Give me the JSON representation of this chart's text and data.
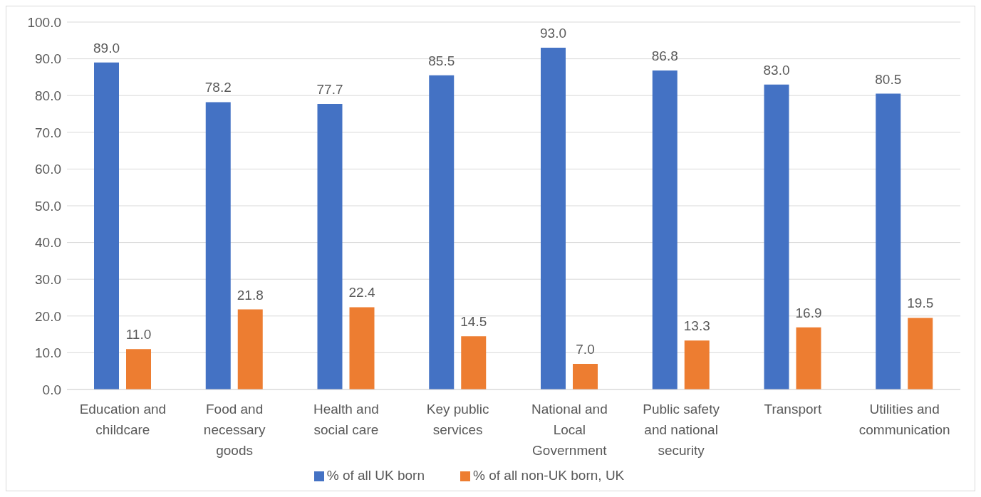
{
  "chart_data": {
    "type": "bar",
    "categories": [
      "Education and childcare",
      "Food and necessary goods",
      "Health and social care",
      "Key public services",
      "National and Local Government",
      "Public safety and national security",
      "Transport",
      "Utilities and communication"
    ],
    "series": [
      {
        "name": "% of all UK born",
        "color": "#4472c4",
        "values": [
          89.0,
          78.2,
          77.7,
          85.5,
          93.0,
          86.8,
          83.0,
          80.5
        ],
        "value_labels": [
          "89.0",
          "78.2",
          "77.7",
          "85.5",
          "93.0",
          "86.8",
          "83.0",
          "80.5"
        ]
      },
      {
        "name": "% of all non-UK born, UK",
        "color": "#ed7d31",
        "values": [
          11.0,
          21.8,
          22.4,
          14.5,
          7.0,
          13.3,
          16.9,
          19.5
        ],
        "value_labels": [
          "11.0",
          "21.8",
          "22.4",
          "14.5",
          "7.0",
          "13.3",
          "16.9",
          "19.5"
        ]
      }
    ],
    "ylim": [
      0,
      100
    ],
    "yticks": [
      {
        "value": 0,
        "label": "0.0"
      },
      {
        "value": 10,
        "label": "10.0"
      },
      {
        "value": 20,
        "label": "20.0"
      },
      {
        "value": 30,
        "label": "30.0"
      },
      {
        "value": 40,
        "label": "40.0"
      },
      {
        "value": 50,
        "label": "50.0"
      },
      {
        "value": 60,
        "label": "60.0"
      },
      {
        "value": 70,
        "label": "70.0"
      },
      {
        "value": 80,
        "label": "80.0"
      },
      {
        "value": 90,
        "label": "90.0"
      },
      {
        "value": 100,
        "label": "100.0"
      }
    ],
    "grid": "y",
    "legend": "bottom"
  }
}
